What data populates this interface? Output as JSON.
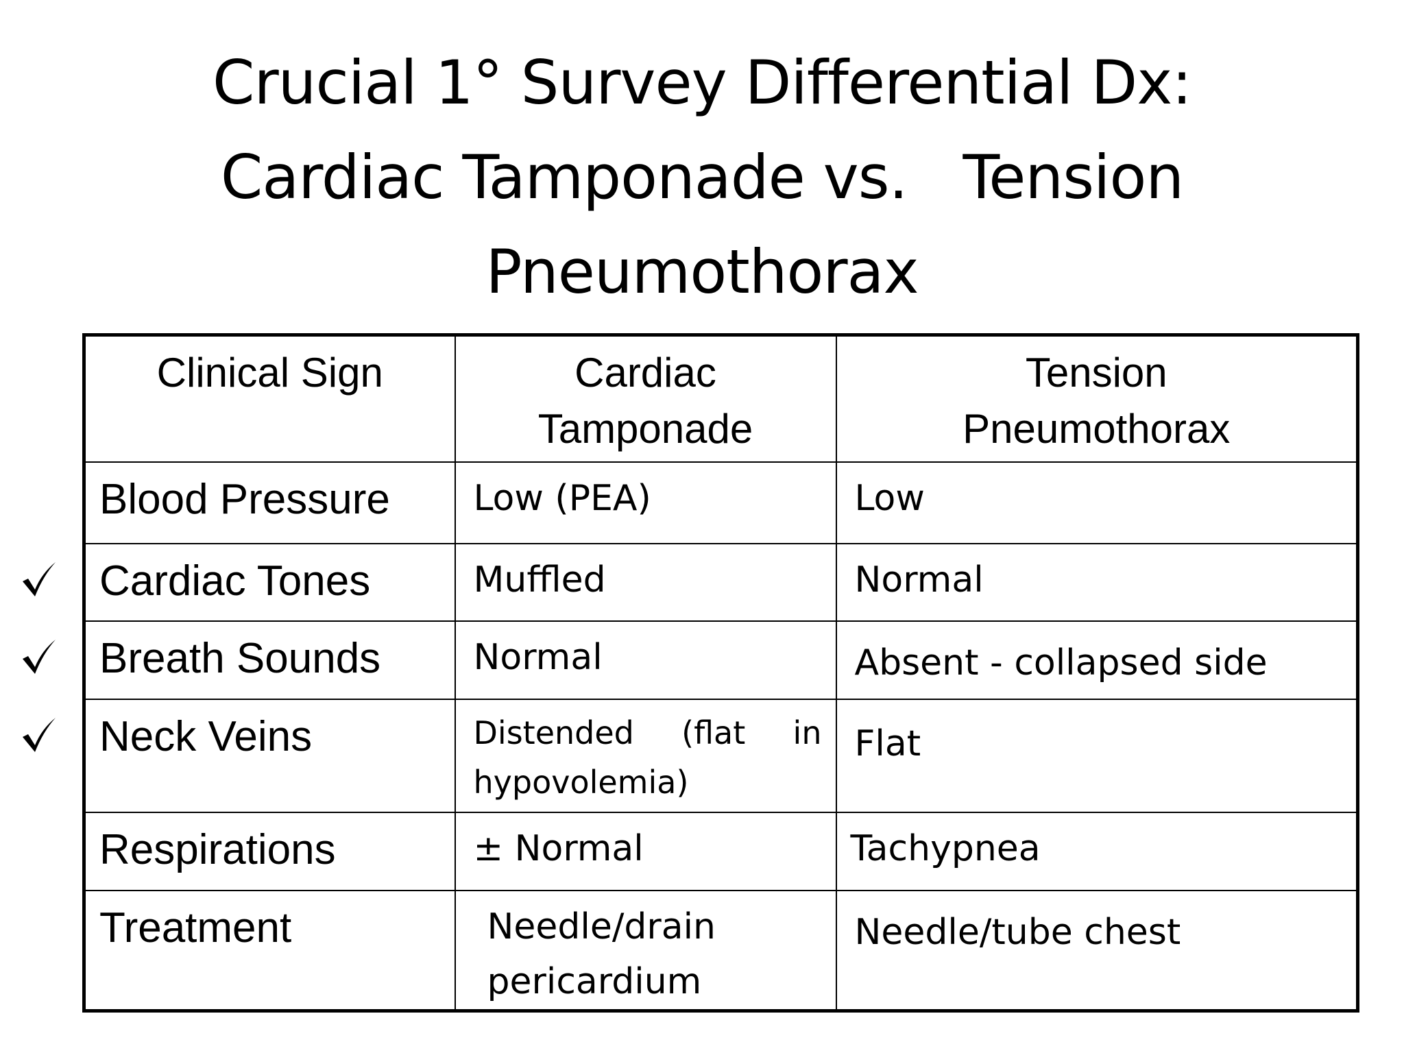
{
  "header": {
    "title_lines": [
      "Crucial 1° Survey Differential Dx:",
      "Cardiac Tamponade vs.   Tension",
      "Pneumothorax"
    ]
  },
  "table": {
    "columns": [
      "Clinical Sign",
      "Cardiac Tamponade",
      "Tension Pneumothorax"
    ],
    "rows": [
      [
        "Blood Pressure",
        "Low (PEA)",
        "Low"
      ],
      [
        "Cardiac Tones",
        "Muffled",
        "Normal"
      ],
      [
        "Breath Sounds",
        "Normal",
        "Absent - collapsed side"
      ],
      [
        "Neck Veins",
        "Distended (flat in hypovolemia)",
        "Flat"
      ],
      [
        "Respirations",
        "± Normal",
        "Tachypnea"
      ],
      [
        "Treatment",
        "Needle/drain pericardium",
        "Needle/tube chest"
      ]
    ]
  }
}
